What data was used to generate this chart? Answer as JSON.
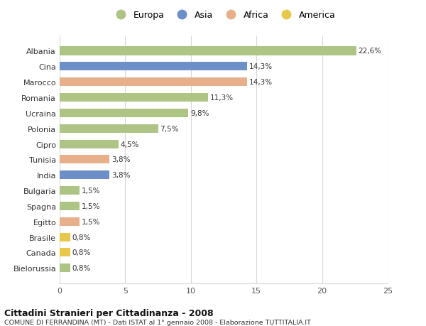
{
  "categories": [
    "Albania",
    "Cina",
    "Marocco",
    "Romania",
    "Ucraina",
    "Polonia",
    "Cipro",
    "Tunisia",
    "India",
    "Bulgaria",
    "Spagna",
    "Egitto",
    "Brasile",
    "Canada",
    "Bielorussia"
  ],
  "values": [
    22.6,
    14.3,
    14.3,
    11.3,
    9.8,
    7.5,
    4.5,
    3.8,
    3.8,
    1.5,
    1.5,
    1.5,
    0.8,
    0.8,
    0.8
  ],
  "labels": [
    "22,6%",
    "14,3%",
    "14,3%",
    "11,3%",
    "9,8%",
    "7,5%",
    "4,5%",
    "3,8%",
    "3,8%",
    "1,5%",
    "1,5%",
    "1,5%",
    "0,8%",
    "0,8%",
    "0,8%"
  ],
  "colors": [
    "#aec485",
    "#6d8fc7",
    "#e8b08a",
    "#aec485",
    "#aec485",
    "#aec485",
    "#aec485",
    "#e8b08a",
    "#6d8fc7",
    "#aec485",
    "#aec485",
    "#e8b08a",
    "#e8c84a",
    "#e8c84a",
    "#aec485"
  ],
  "legend_labels": [
    "Europa",
    "Asia",
    "Africa",
    "America"
  ],
  "legend_colors": [
    "#aec485",
    "#6d8fc7",
    "#e8b08a",
    "#e8c84a"
  ],
  "title": "Cittadini Stranieri per Cittadinanza - 2008",
  "subtitle": "COMUNE DI FERRANDINA (MT) - Dati ISTAT al 1° gennaio 2008 - Elaborazione TUTTITALIA.IT",
  "xlim": [
    0,
    25
  ],
  "xticks": [
    0,
    5,
    10,
    15,
    20,
    25
  ],
  "background_color": "#ffffff",
  "grid_color": "#d8d8d8",
  "bar_height": 0.55
}
